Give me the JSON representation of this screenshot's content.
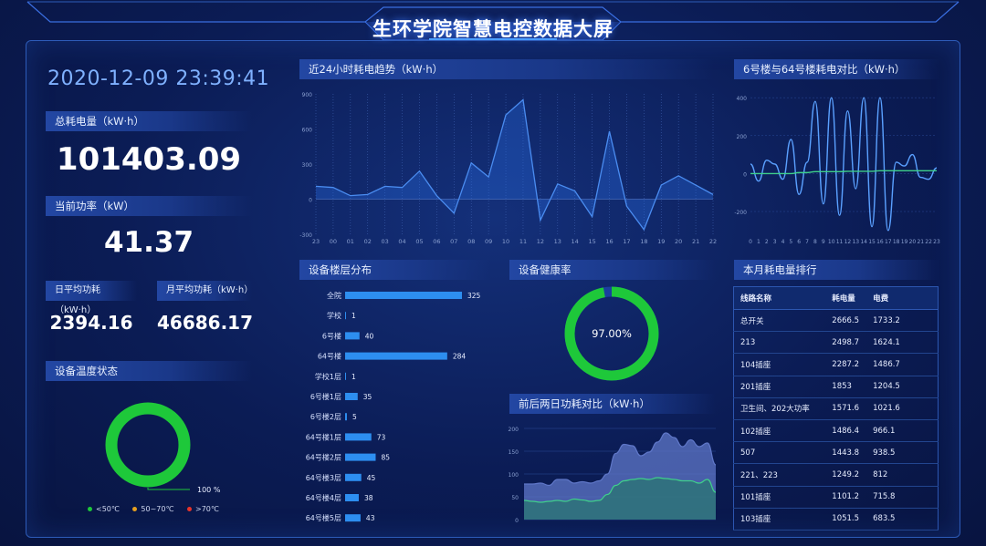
{
  "title": "生环学院智慧电控数据大屏",
  "datetime": "2020-12-09 23:39:41",
  "total": {
    "label": "总耗电量（kW·h）",
    "value": "101403.09"
  },
  "power": {
    "label": "当前功率（kW）",
    "value": "41.37"
  },
  "daily": {
    "label": "日平均功耗（kW·h）",
    "value": "2394.16"
  },
  "monthly": {
    "label": "月平均功耗（kW·h）",
    "value": "46686.17"
  },
  "temp": {
    "label": "设备温度状态",
    "percent_label": "100 %",
    "percent": 100,
    "legend": [
      {
        "label": "<50℃",
        "color": "#1ec83a"
      },
      {
        "label": "50~70℃",
        "color": "#e5a020"
      },
      {
        "label": ">70℃",
        "color": "#e8342a"
      }
    ]
  },
  "trend24": {
    "label": "近24小时耗电趋势（kW·h）"
  },
  "compare6_64": {
    "label": "6号楼与64号楼耗电对比（kW·h）"
  },
  "floors": {
    "label": "设备楼层分布"
  },
  "health": {
    "label": "设备健康率",
    "value": "97.00%",
    "percent": 97
  },
  "twoday": {
    "label": "前后两日功耗对比（kW·h）"
  },
  "ranking": {
    "label": "本月耗电量排行",
    "headers": [
      "线路名称",
      "耗电量",
      "电费"
    ],
    "rows": [
      [
        "总开关",
        "2666.5",
        "1733.2"
      ],
      [
        "213",
        "2498.7",
        "1624.1"
      ],
      [
        "104插座",
        "2287.2",
        "1486.7"
      ],
      [
        "201插座",
        "1853",
        "1204.5"
      ],
      [
        "卫生间、202大功率",
        "1571.6",
        "1021.6"
      ],
      [
        "102插座",
        "1486.4",
        "966.1"
      ],
      [
        "507",
        "1443.8",
        "938.5"
      ],
      [
        "221、223",
        "1249.2",
        "812"
      ],
      [
        "101插座",
        "1101.2",
        "715.8"
      ],
      [
        "103插座",
        "1051.5",
        "683.5"
      ]
    ]
  },
  "chart_data": [
    {
      "type": "line",
      "id": "trend24",
      "categories": [
        "23",
        "00",
        "01",
        "02",
        "03",
        "04",
        "05",
        "06",
        "07",
        "08",
        "09",
        "10",
        "11",
        "12",
        "13",
        "14",
        "15",
        "16",
        "17",
        "18",
        "19",
        "20",
        "21",
        "22"
      ],
      "values": [
        110,
        100,
        30,
        40,
        110,
        100,
        240,
        30,
        -120,
        310,
        190,
        720,
        850,
        -180,
        130,
        70,
        -150,
        580,
        -60,
        -260,
        120,
        200,
        120,
        40
      ],
      "yticks": [
        -300,
        0,
        300,
        600,
        900
      ],
      "ylim": [
        -300,
        900
      ],
      "color": "#4a8cf0"
    },
    {
      "type": "line",
      "id": "compare6_64",
      "categories": [
        "0",
        "1",
        "2",
        "3",
        "4",
        "5",
        "6",
        "7",
        "8",
        "9",
        "10",
        "11",
        "12",
        "13",
        "14",
        "15",
        "16",
        "17",
        "18",
        "19",
        "20",
        "21",
        "22",
        "23"
      ],
      "yticks": [
        -200,
        0,
        200,
        400
      ],
      "ylim": [
        -320,
        420
      ],
      "series": [
        {
          "values": [
            50,
            -40,
            70,
            50,
            -30,
            180,
            -110,
            60,
            380,
            -160,
            400,
            -220,
            330,
            -80,
            400,
            -280,
            400,
            -300,
            60,
            40,
            100,
            -20,
            -30,
            30
          ],
          "color": "#5aa0ff"
        },
        {
          "values": [
            0,
            0,
            0,
            0,
            0,
            0,
            5,
            5,
            10,
            10,
            10,
            10,
            12,
            12,
            12,
            12,
            15,
            15,
            15,
            15,
            15,
            15,
            15,
            15
          ],
          "color": "#3fd08a"
        }
      ]
    },
    {
      "type": "bar",
      "id": "floors",
      "categories": [
        "全院",
        "学校",
        "6号楼",
        "64号楼",
        "学校1层",
        "6号楼1层",
        "6号楼2层",
        "64号楼1层",
        "64号楼2层",
        "64号楼3层",
        "64号楼4层",
        "64号楼5层"
      ],
      "values": [
        325,
        1,
        40,
        284,
        1,
        35,
        5,
        73,
        85,
        45,
        38,
        43
      ],
      "xlim": [
        0,
        325
      ],
      "color": "#2d8ef0"
    },
    {
      "type": "area",
      "id": "twoday",
      "yticks": [
        0,
        50,
        100,
        150,
        200
      ],
      "ylim": [
        0,
        200
      ],
      "series": [
        {
          "values": [
            78,
            78,
            80,
            75,
            88,
            88,
            80,
            83,
            80,
            85,
            100,
            145,
            165,
            162,
            140,
            148,
            170,
            190,
            180,
            160,
            175,
            160,
            168,
            120
          ],
          "color": "#5f77c8"
        },
        {
          "values": [
            42,
            40,
            38,
            40,
            42,
            40,
            45,
            43,
            40,
            42,
            55,
            75,
            85,
            88,
            90,
            88,
            92,
            90,
            88,
            85,
            85,
            80,
            88,
            60
          ],
          "color": "#3fd08a"
        }
      ]
    }
  ]
}
